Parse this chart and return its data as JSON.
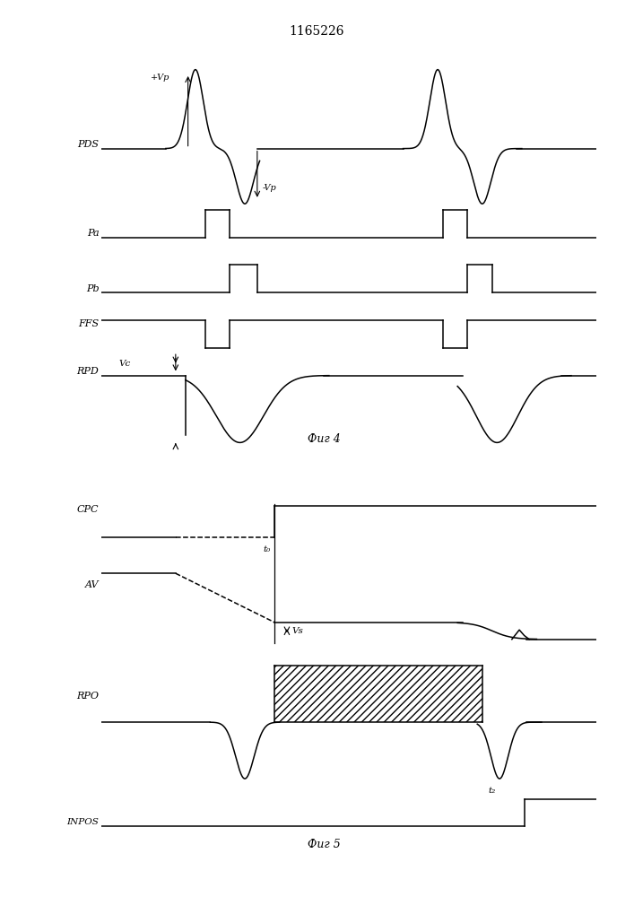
{
  "title": "1165226",
  "fig4_label": "Фиг 4",
  "fig5_label": "Фиг 5",
  "bg_color": "#ffffff",
  "line_color": "#000000"
}
